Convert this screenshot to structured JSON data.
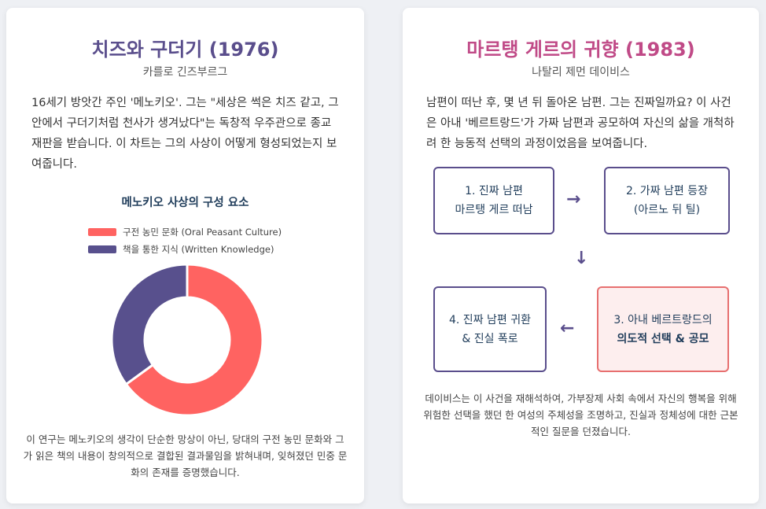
{
  "left_card": {
    "title": "치즈와 구더기 (1976)",
    "author": "카를로 긴즈부르그",
    "description": "16세기 방앗간 주인 '메노키오'. 그는 \"세상은 썩은 치즈 같고, 그 안에서 구더기처럼 천사가 생겨났다\"는 독창적 우주관으로 종교재판을 받습니다. 이 차트는 그의 사상이 어떻게 형성되었는지 보여줍니다.",
    "footnote": "이 연구는 메노키오의 생각이 단순한 망상이 아닌, 당대의 구전 농민 문화와 그가 읽은 책의 내용이 창의적으로 결합된 결과물임을 밝혀내며, 잊혀졌던 민중 문화의 존재를 증명했습니다."
  },
  "chart_data": {
    "type": "pie",
    "title": "메노키오 사상의 구성 요소",
    "legend_position": "top",
    "donut": true,
    "series": [
      {
        "name": "구전 농민 문화 (Oral Peasant Culture)",
        "value": 65,
        "color": "#ff6361"
      },
      {
        "name": "책을 통한 지식 (Written Knowledge)",
        "value": 35,
        "color": "#58508d"
      }
    ]
  },
  "right_card": {
    "title": "마르탱 게르의 귀향 (1983)",
    "author": "나탈리 제먼 데이비스",
    "description": "남편이 떠난 후, 몇 년 뒤 돌아온 남편. 그는 진짜일까요? 이 사건은 아내 '베르트랑드'가 가짜 남편과 공모하여 자신의 삶을 개척하려 한 능동적 선택의 과정이었음을 보여줍니다.",
    "steps": [
      {
        "line1": "1. 진짜 남편",
        "line2": "마르탱 게르 떠남"
      },
      {
        "line1": "2. 가짜 남편 등장",
        "line2": "(아르노 뒤 틸)"
      },
      {
        "line1": "3. 아내 베르트랑드의",
        "line2": "의도적 선택 & 공모"
      },
      {
        "line1": "4. 진짜 남편 귀환",
        "line2": "& 진실 폭로"
      }
    ],
    "arrows": {
      "right": "→",
      "down": "↓",
      "left": "←"
    },
    "bottom_note": "데이비스는 이 사건을 재해석하여, 가부장제 사회 속에서 자신의 행복을 위해 위험한 선택을 했던 한 여성의 주체성을 조명하고, 진실과 정체성에 대한 근본적인 질문을 던졌습니다."
  }
}
